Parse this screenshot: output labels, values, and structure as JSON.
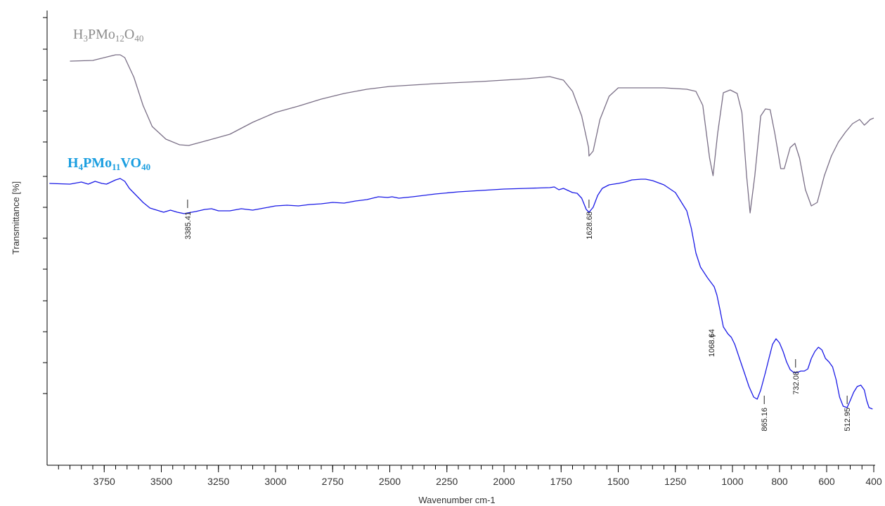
{
  "chart_data": {
    "type": "line",
    "xlabel": "Wavenumber cm-1",
    "ylabel": "Transmittance [%]",
    "xlim": [
      4000,
      400
    ],
    "x_reversed": true,
    "grid": false,
    "x_ticks": [
      3750,
      3500,
      3250,
      3000,
      2750,
      2500,
      2250,
      2000,
      1750,
      1500,
      1250,
      1000,
      800,
      600,
      400
    ],
    "series": [
      {
        "name": "H3PMo12O40",
        "label_parts": [
          {
            "t": "H",
            "sub": false
          },
          {
            "t": "3",
            "sub": true
          },
          {
            "t": "PMo",
            "sub": false
          },
          {
            "t": "12",
            "sub": true
          },
          {
            "t": "O",
            "sub": false
          },
          {
            "t": "40",
            "sub": true
          }
        ],
        "color": "#7a6f86",
        "label_color": "#8c8c8c",
        "points": [
          [
            3900,
            77
          ],
          [
            3800,
            76
          ],
          [
            3700,
            68
          ],
          [
            3680,
            68
          ],
          [
            3660,
            72
          ],
          [
            3620,
            100
          ],
          [
            3580,
            140
          ],
          [
            3540,
            170
          ],
          [
            3480,
            188
          ],
          [
            3420,
            196
          ],
          [
            3380,
            197
          ],
          [
            3300,
            190
          ],
          [
            3200,
            181
          ],
          [
            3100,
            164
          ],
          [
            3000,
            150
          ],
          [
            2900,
            141
          ],
          [
            2800,
            131
          ],
          [
            2700,
            123
          ],
          [
            2600,
            117
          ],
          [
            2500,
            113
          ],
          [
            2300,
            109
          ],
          [
            2100,
            106
          ],
          [
            1900,
            102
          ],
          [
            1800,
            99
          ],
          [
            1740,
            104
          ],
          [
            1700,
            120
          ],
          [
            1660,
            155
          ],
          [
            1630,
            200
          ],
          [
            1628,
            212
          ],
          [
            1610,
            205
          ],
          [
            1580,
            160
          ],
          [
            1540,
            127
          ],
          [
            1500,
            115
          ],
          [
            1400,
            115
          ],
          [
            1300,
            115
          ],
          [
            1250,
            116
          ],
          [
            1200,
            117
          ],
          [
            1160,
            120
          ],
          [
            1130,
            140
          ],
          [
            1100,
            215
          ],
          [
            1085,
            240
          ],
          [
            1065,
            180
          ],
          [
            1040,
            122
          ],
          [
            1010,
            118
          ],
          [
            980,
            123
          ],
          [
            960,
            150
          ],
          [
            940,
            240
          ],
          [
            925,
            293
          ],
          [
            905,
            240
          ],
          [
            880,
            155
          ],
          [
            860,
            145
          ],
          [
            840,
            146
          ],
          [
            820,
            180
          ],
          [
            795,
            230
          ],
          [
            780,
            230
          ],
          [
            755,
            200
          ],
          [
            735,
            194
          ],
          [
            715,
            215
          ],
          [
            690,
            260
          ],
          [
            665,
            283
          ],
          [
            640,
            278
          ],
          [
            610,
            240
          ],
          [
            580,
            212
          ],
          [
            550,
            192
          ],
          [
            520,
            178
          ],
          [
            490,
            166
          ],
          [
            460,
            160
          ],
          [
            440,
            168
          ],
          [
            430,
            165
          ],
          [
            415,
            160
          ],
          [
            400,
            158
          ]
        ]
      },
      {
        "name": "H4PMo11VO40",
        "label_parts": [
          {
            "t": "H",
            "sub": false
          },
          {
            "t": "4",
            "sub": true
          },
          {
            "t": "PMo",
            "sub": false
          },
          {
            "t": "11",
            "sub": true
          },
          {
            "t": "VO",
            "sub": false
          },
          {
            "t": "40",
            "sub": true
          }
        ],
        "color": "#1a1ae6",
        "label_color": "#1a9ee0",
        "points": [
          [
            3990,
            251
          ],
          [
            3900,
            252
          ],
          [
            3850,
            249
          ],
          [
            3820,
            252
          ],
          [
            3790,
            248
          ],
          [
            3760,
            251
          ],
          [
            3740,
            252
          ],
          [
            3720,
            249
          ],
          [
            3700,
            246
          ],
          [
            3680,
            244
          ],
          [
            3660,
            248
          ],
          [
            3640,
            258
          ],
          [
            3610,
            268
          ],
          [
            3580,
            278
          ],
          [
            3550,
            286
          ],
          [
            3520,
            289
          ],
          [
            3490,
            292
          ],
          [
            3460,
            289
          ],
          [
            3430,
            292
          ],
          [
            3400,
            294
          ],
          [
            3385,
            293
          ],
          [
            3350,
            291
          ],
          [
            3310,
            288
          ],
          [
            3280,
            287
          ],
          [
            3250,
            290
          ],
          [
            3200,
            290
          ],
          [
            3150,
            287
          ],
          [
            3100,
            289
          ],
          [
            3050,
            286
          ],
          [
            3000,
            283
          ],
          [
            2950,
            282
          ],
          [
            2900,
            283
          ],
          [
            2850,
            281
          ],
          [
            2800,
            280
          ],
          [
            2750,
            278
          ],
          [
            2700,
            279
          ],
          [
            2650,
            276
          ],
          [
            2600,
            274
          ],
          [
            2550,
            270
          ],
          [
            2510,
            271
          ],
          [
            2490,
            270
          ],
          [
            2460,
            272
          ],
          [
            2400,
            270
          ],
          [
            2300,
            266
          ],
          [
            2200,
            263
          ],
          [
            2100,
            261
          ],
          [
            2000,
            259
          ],
          [
            1900,
            258
          ],
          [
            1800,
            257
          ],
          [
            1780,
            256
          ],
          [
            1760,
            260
          ],
          [
            1740,
            258
          ],
          [
            1720,
            261
          ],
          [
            1700,
            264
          ],
          [
            1680,
            265
          ],
          [
            1660,
            272
          ],
          [
            1640,
            288
          ],
          [
            1628,
            292
          ],
          [
            1610,
            285
          ],
          [
            1590,
            268
          ],
          [
            1570,
            258
          ],
          [
            1540,
            253
          ],
          [
            1500,
            251
          ],
          [
            1470,
            249
          ],
          [
            1440,
            246
          ],
          [
            1400,
            245
          ],
          [
            1380,
            245
          ],
          [
            1350,
            247
          ],
          [
            1300,
            253
          ],
          [
            1250,
            264
          ],
          [
            1200,
            290
          ],
          [
            1180,
            315
          ],
          [
            1160,
            350
          ],
          [
            1140,
            370
          ],
          [
            1110,
            385
          ],
          [
            1080,
            398
          ],
          [
            1068,
            410
          ],
          [
            1055,
            430
          ],
          [
            1040,
            455
          ],
          [
            1020,
            465
          ],
          [
            1005,
            470
          ],
          [
            990,
            480
          ],
          [
            970,
            500
          ],
          [
            950,
            520
          ],
          [
            930,
            540
          ],
          [
            910,
            555
          ],
          [
            895,
            558
          ],
          [
            880,
            545
          ],
          [
            860,
            520
          ],
          [
            845,
            500
          ],
          [
            830,
            480
          ],
          [
            815,
            472
          ],
          [
            800,
            478
          ],
          [
            785,
            490
          ],
          [
            770,
            505
          ],
          [
            755,
            516
          ],
          [
            740,
            520
          ],
          [
            725,
            520
          ],
          [
            710,
            518
          ],
          [
            695,
            518
          ],
          [
            680,
            515
          ],
          [
            665,
            500
          ],
          [
            650,
            490
          ],
          [
            635,
            484
          ],
          [
            620,
            488
          ],
          [
            605,
            500
          ],
          [
            590,
            505
          ],
          [
            575,
            512
          ],
          [
            560,
            530
          ],
          [
            545,
            555
          ],
          [
            530,
            568
          ],
          [
            513,
            570
          ],
          [
            500,
            560
          ],
          [
            485,
            548
          ],
          [
            470,
            540
          ],
          [
            455,
            538
          ],
          [
            440,
            545
          ],
          [
            430,
            560
          ],
          [
            420,
            570
          ],
          [
            405,
            572
          ]
        ]
      }
    ],
    "peak_labels": [
      {
        "x": 3385,
        "text": "3385.41",
        "row": "upper"
      },
      {
        "x": 1628,
        "text": "1628.68",
        "row": "upper"
      },
      {
        "x": 1068,
        "text": "1068.64",
        "row": "lower_mid"
      },
      {
        "x": 865,
        "text": "865.16",
        "row": "low"
      },
      {
        "x": 732,
        "text": "732.08",
        "row": "mid"
      },
      {
        "x": 513,
        "text": "512.95",
        "row": "low"
      }
    ]
  }
}
